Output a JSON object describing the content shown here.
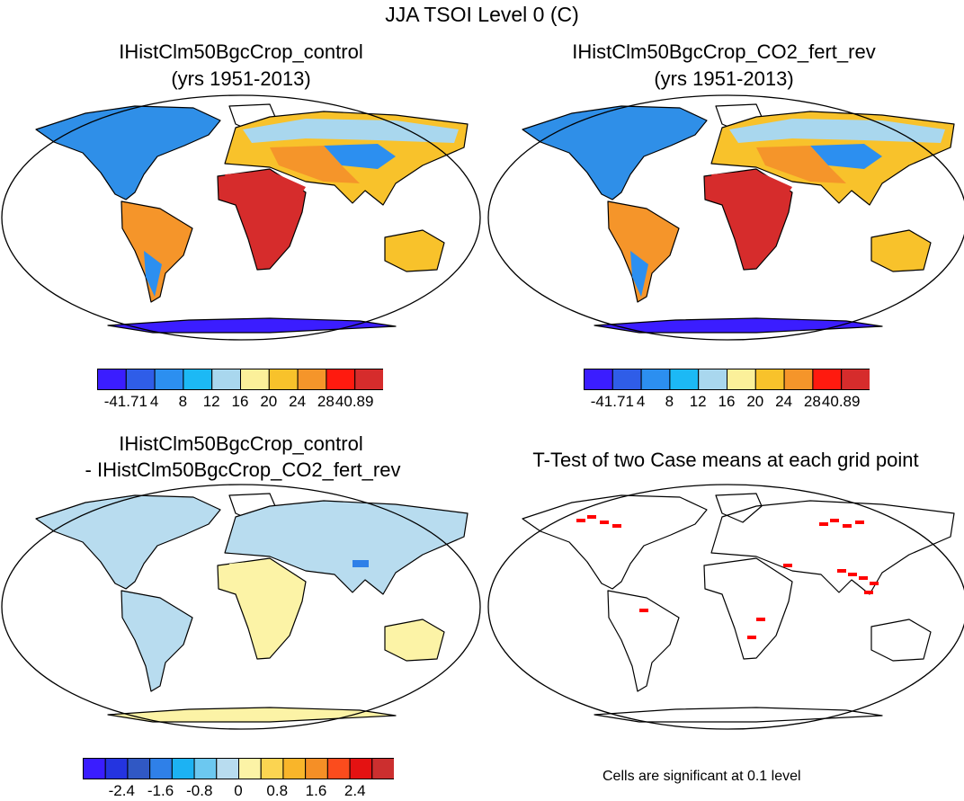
{
  "title": "JJA TSOI Level 0 (C)",
  "panels": {
    "top_left": {
      "title_line1": "IHistClm50BgcCrop_control",
      "title_line2": "(yrs 1951-2013)"
    },
    "top_right": {
      "title_line1": "IHistClm50BgcCrop_CO2_fert_rev",
      "title_line2": "(yrs 1951-2013)"
    },
    "bottom_left": {
      "title_line1": "IHistClm50BgcCrop_control",
      "title_line2": "- IHistClm50BgcCrop_CO2_fert_rev"
    },
    "bottom_right": {
      "title_line1": "T-Test of two Case means at each grid point",
      "note": "Cells are significant at 0.1 level"
    }
  },
  "colorbars": {
    "climatology": {
      "colors": [
        "#3b1dff",
        "#2f5de8",
        "#2c8ff0",
        "#1cb9f5",
        "#a9d7ee",
        "#fbf09a",
        "#f8c22b",
        "#f5952a",
        "#ff1a0f",
        "#d62c2c"
      ],
      "labels": [
        "-41.71",
        "4",
        "8",
        "12",
        "16",
        "20",
        "24",
        "28",
        "40.89"
      ]
    },
    "difference": {
      "colors": [
        "#3a1dff",
        "#2434e0",
        "#3058c4",
        "#2f80e8",
        "#1cb2f3",
        "#6cc8f0",
        "#b8dcef",
        "#fcf3a6",
        "#fbd451",
        "#f9b52a",
        "#f58f26",
        "#fb4c1d",
        "#e41212",
        "#cc2f2f"
      ],
      "labels": [
        "-2.4",
        "-1.6",
        "-0.8",
        "0",
        "0.8",
        "1.6",
        "2.4"
      ]
    }
  }
}
